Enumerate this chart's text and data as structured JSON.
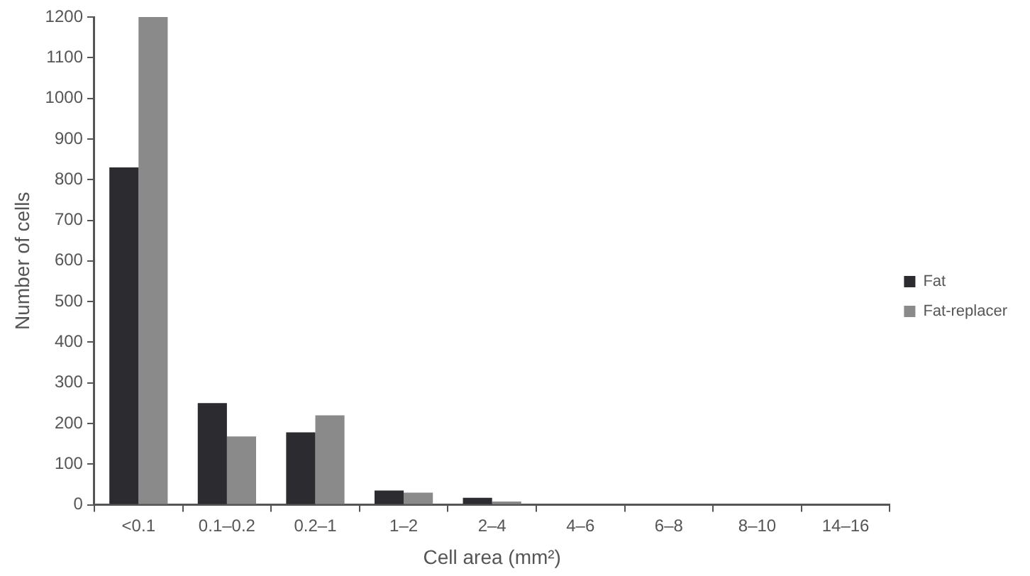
{
  "chart_data": {
    "type": "bar",
    "categories": [
      "<0.1",
      "0.1–0.2",
      "0.2–1",
      "1–2",
      "2–4",
      "4–6",
      "6–8",
      "8–10",
      "14–16"
    ],
    "series": [
      {
        "name": "Fat",
        "color": "#2b2b30",
        "values": [
          830,
          250,
          178,
          35,
          17,
          0,
          0,
          0,
          2
        ]
      },
      {
        "name": "Fat-replacer",
        "color": "#8a8a8a",
        "values": [
          1200,
          168,
          220,
          30,
          8,
          0,
          0,
          0,
          2
        ]
      }
    ],
    "xlabel": "Cell area (mm²)",
    "ylabel": "Number of cells",
    "ylim": [
      0,
      1200
    ],
    "yticks": [
      0,
      100,
      200,
      300,
      400,
      500,
      600,
      700,
      800,
      900,
      1000,
      1100,
      1200
    ],
    "grid": false,
    "legend": "right"
  }
}
